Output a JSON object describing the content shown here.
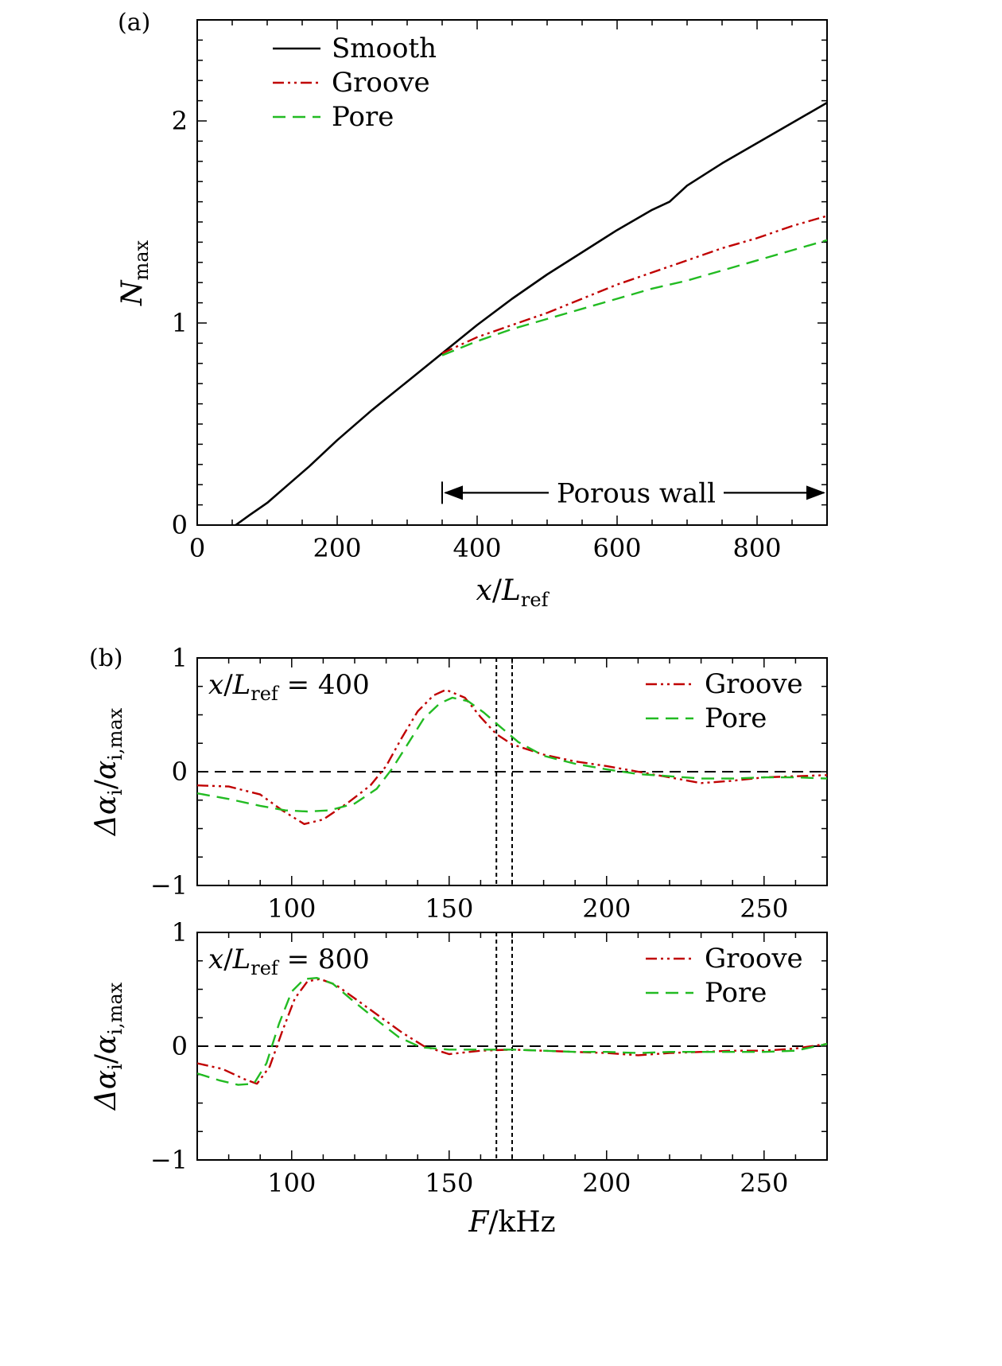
{
  "chart_data": [
    {
      "id": "a",
      "panel_label": "(a)",
      "type": "line",
      "xlabel": {
        "var": "x",
        "slash": "/",
        "base": "L",
        "sub": "ref"
      },
      "ylabel": {
        "base": "N",
        "sub": "max"
      },
      "xlim": [
        0,
        900
      ],
      "ylim": [
        0,
        2.5
      ],
      "xticks": [
        0,
        200,
        400,
        600,
        800
      ],
      "xtick_labels": [
        "0",
        "200",
        "400",
        "600",
        "800"
      ],
      "yticks": [
        0,
        1,
        2
      ],
      "ytick_labels": [
        "0",
        "1",
        "2"
      ],
      "legend_position": "top-left",
      "annotation": {
        "text": "Porous wall",
        "x_start": 350,
        "x_end": 900,
        "y": 0.16
      },
      "series": [
        {
          "name": "Smooth",
          "color": "#000000",
          "dash": "solid",
          "x": [
            55,
            75,
            100,
            130,
            160,
            200,
            250,
            300,
            350,
            400,
            450,
            500,
            550,
            600,
            650,
            675,
            700,
            750,
            800,
            850,
            900
          ],
          "y": [
            0,
            0.05,
            0.11,
            0.2,
            0.29,
            0.42,
            0.57,
            0.71,
            0.85,
            0.99,
            1.12,
            1.24,
            1.35,
            1.46,
            1.56,
            1.6,
            1.68,
            1.79,
            1.89,
            1.99,
            2.09
          ]
        },
        {
          "name": "Groove",
          "color": "#c00000",
          "dash": "dashdotdot",
          "x": [
            350,
            400,
            450,
            500,
            550,
            600,
            650,
            700,
            750,
            800,
            850,
            900
          ],
          "y": [
            0.85,
            0.93,
            0.99,
            1.05,
            1.12,
            1.19,
            1.25,
            1.31,
            1.37,
            1.42,
            1.48,
            1.53
          ]
        },
        {
          "name": "Pore",
          "color": "#22bb22",
          "dash": "dashed",
          "x": [
            350,
            400,
            450,
            500,
            550,
            600,
            650,
            700,
            750,
            800,
            850,
            900
          ],
          "y": [
            0.84,
            0.91,
            0.97,
            1.02,
            1.07,
            1.12,
            1.17,
            1.21,
            1.26,
            1.31,
            1.36,
            1.41
          ]
        }
      ]
    },
    {
      "id": "b1",
      "panel_label": "(b)",
      "type": "line",
      "xlabel": null,
      "ylabel": {
        "delta": "Δα",
        "sub1": "i",
        "slash": "/",
        "base": "α",
        "sub2": "i,max"
      },
      "xlim": [
        70,
        270
      ],
      "ylim": [
        -1,
        1
      ],
      "xticks": [
        100,
        150,
        200,
        250
      ],
      "xtick_labels": [
        "100",
        "150",
        "200",
        "250"
      ],
      "yticks": [
        -1,
        0,
        1
      ],
      "ytick_labels": [
        "−1",
        "0",
        "1"
      ],
      "annotation": {
        "var": "x",
        "slash": "/",
        "base": "L",
        "sub": "ref",
        "eq": " = ",
        "value": "400"
      },
      "legend_position": "top-right",
      "zero_line": true,
      "vlines": [
        165,
        170
      ],
      "series": [
        {
          "name": "Groove",
          "color": "#c00000",
          "dash": "dashdotdot",
          "x": [
            70,
            80,
            90,
            97,
            104,
            110,
            118,
            125,
            130,
            135,
            140,
            145,
            149,
            155,
            160,
            165,
            170,
            180,
            190,
            200,
            210,
            220,
            230,
            240,
            250,
            260,
            270
          ],
          "y": [
            -0.12,
            -0.13,
            -0.2,
            -0.34,
            -0.46,
            -0.42,
            -0.27,
            -0.12,
            0.05,
            0.3,
            0.53,
            0.67,
            0.72,
            0.65,
            0.48,
            0.33,
            0.24,
            0.15,
            0.09,
            0.05,
            0.0,
            -0.05,
            -0.1,
            -0.08,
            -0.05,
            -0.04,
            -0.03
          ]
        },
        {
          "name": "Pore",
          "color": "#22bb22",
          "dash": "dashed",
          "x": [
            70,
            80,
            90,
            98,
            105,
            112,
            120,
            127,
            132,
            137,
            142,
            147,
            151,
            156,
            161,
            166,
            172,
            180,
            190,
            200,
            210,
            220,
            230,
            240,
            250,
            260,
            270
          ],
          "y": [
            -0.19,
            -0.24,
            -0.3,
            -0.34,
            -0.35,
            -0.34,
            -0.28,
            -0.15,
            0.03,
            0.25,
            0.47,
            0.6,
            0.65,
            0.62,
            0.52,
            0.4,
            0.26,
            0.14,
            0.07,
            0.02,
            -0.02,
            -0.04,
            -0.06,
            -0.06,
            -0.05,
            -0.05,
            -0.06
          ]
        }
      ]
    },
    {
      "id": "b2",
      "panel_label": "",
      "type": "line",
      "xlabel": {
        "var": "F",
        "slash": "/",
        "unit": "kHz"
      },
      "ylabel": {
        "delta": "Δα",
        "sub1": "i",
        "slash": "/",
        "base": "α",
        "sub2": "i,max"
      },
      "xlim": [
        70,
        270
      ],
      "ylim": [
        -1,
        1
      ],
      "xticks": [
        100,
        150,
        200,
        250
      ],
      "xtick_labels": [
        "100",
        "150",
        "200",
        "250"
      ],
      "yticks": [
        -1,
        0,
        1
      ],
      "ytick_labels": [
        "−1",
        "0",
        "1"
      ],
      "annotation": {
        "var": "x",
        "slash": "/",
        "base": "L",
        "sub": "ref",
        "eq": " = ",
        "value": "800"
      },
      "legend_position": "top-right",
      "zero_line": true,
      "vlines": [
        165,
        170
      ],
      "series": [
        {
          "name": "Groove",
          "color": "#c00000",
          "dash": "dashdotdot",
          "x": [
            70,
            78,
            85,
            89,
            93,
            97,
            101,
            105,
            109,
            114,
            120,
            128,
            135,
            142,
            150,
            160,
            170,
            180,
            190,
            200,
            210,
            220,
            230,
            240,
            250,
            260,
            270
          ],
          "y": [
            -0.15,
            -0.2,
            -0.29,
            -0.33,
            -0.18,
            0.13,
            0.42,
            0.57,
            0.59,
            0.54,
            0.42,
            0.26,
            0.12,
            0.0,
            -0.07,
            -0.04,
            -0.03,
            -0.04,
            -0.05,
            -0.06,
            -0.08,
            -0.06,
            -0.05,
            -0.04,
            -0.04,
            -0.02,
            0.02
          ]
        },
        {
          "name": "Pore",
          "color": "#22bb22",
          "dash": "dashed",
          "x": [
            70,
            77,
            83,
            88,
            92,
            96,
            100,
            104,
            108,
            113,
            119,
            127,
            134,
            141,
            150,
            160,
            170,
            180,
            190,
            200,
            210,
            220,
            230,
            240,
            250,
            260,
            270
          ],
          "y": [
            -0.24,
            -0.3,
            -0.34,
            -0.33,
            -0.15,
            0.2,
            0.48,
            0.59,
            0.6,
            0.55,
            0.41,
            0.23,
            0.08,
            -0.01,
            -0.03,
            -0.03,
            -0.03,
            -0.04,
            -0.05,
            -0.05,
            -0.06,
            -0.05,
            -0.05,
            -0.05,
            -0.05,
            -0.04,
            0.02
          ]
        }
      ]
    }
  ]
}
